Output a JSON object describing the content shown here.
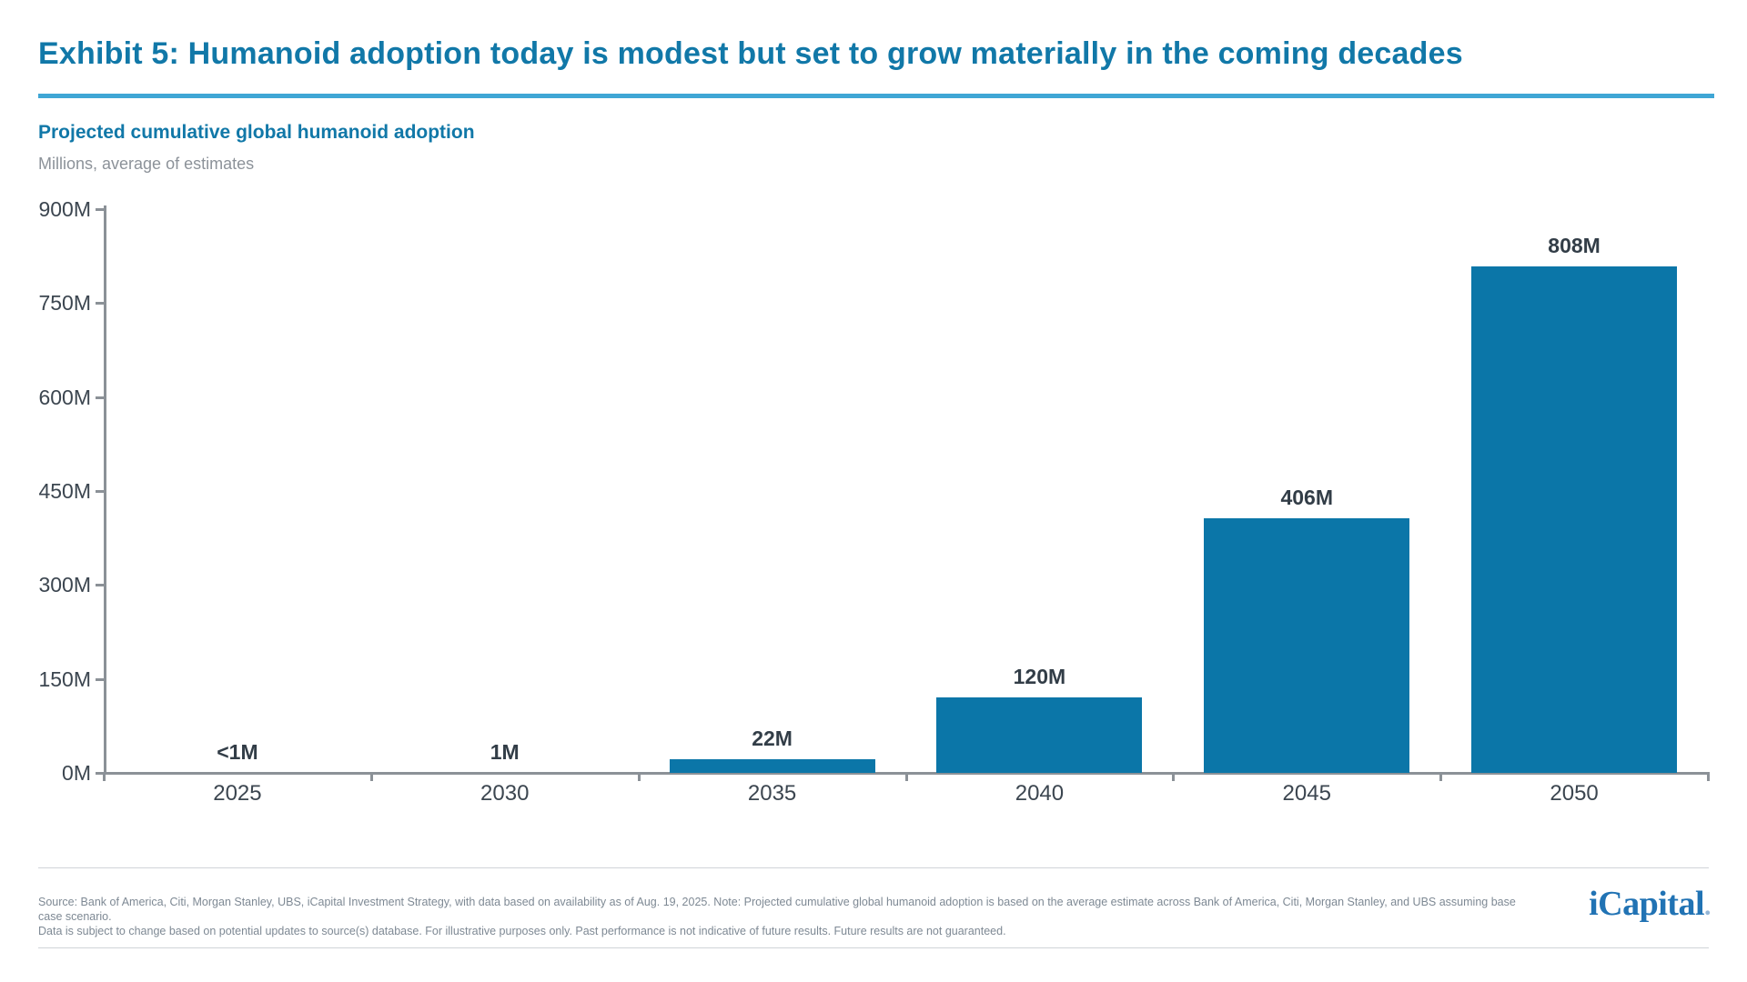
{
  "header": {
    "title": "Exhibit 5: Humanoid adoption today is modest but set to grow materially in the coming decades"
  },
  "chart": {
    "subtitle": "Projected cumulative global humanoid adoption",
    "unit_note": "Millions, average of estimates"
  },
  "chart_data": {
    "type": "bar",
    "title": "Projected cumulative global humanoid adoption",
    "subtitle": "Millions, average of estimates",
    "categories": [
      "2025",
      "2030",
      "2035",
      "2040",
      "2045",
      "2050"
    ],
    "values": [
      0.5,
      1,
      22,
      120,
      406,
      808
    ],
    "value_labels": [
      "<1M",
      "1M",
      "22M",
      "120M",
      "406M",
      "808M"
    ],
    "xlabel": "",
    "ylabel": "Millions, average of estimates",
    "ylim": [
      0,
      900
    ],
    "yticks": [
      0,
      150,
      300,
      450,
      600,
      750,
      900
    ],
    "ytick_labels": [
      "0M",
      "150M",
      "300M",
      "450M",
      "600M",
      "750M",
      "900M"
    ],
    "grid": false,
    "legend_position": "none",
    "bar_color": "#0b76a8",
    "value_label_color": "#323d47",
    "axis_color": "#8b9197",
    "tick_label_color": "#3c4650"
  },
  "colors": {
    "title_teal": "#1178a8",
    "underline_blue": "#3fa6d5",
    "note_gray": "#8c9299",
    "bar_blue": "#0b76a8",
    "logo_blue": "#2173b4"
  },
  "footer": {
    "source_line1": "Source: Bank of America, Citi, Morgan Stanley, UBS, iCapital Investment Strategy, with data based on availability as of Aug. 19, 2025. Note: Projected cumulative global humanoid adoption is based on the average estimate across Bank of America, Citi, Morgan Stanley, and UBS assuming base case scenario.",
    "source_line2": "Data is subject to change based on potential updates to source(s) database. For illustrative purposes only. Past performance is not indicative of future results. Future results are not guaranteed.",
    "logo_text": "iCapital",
    "logo_suffix": "."
  }
}
